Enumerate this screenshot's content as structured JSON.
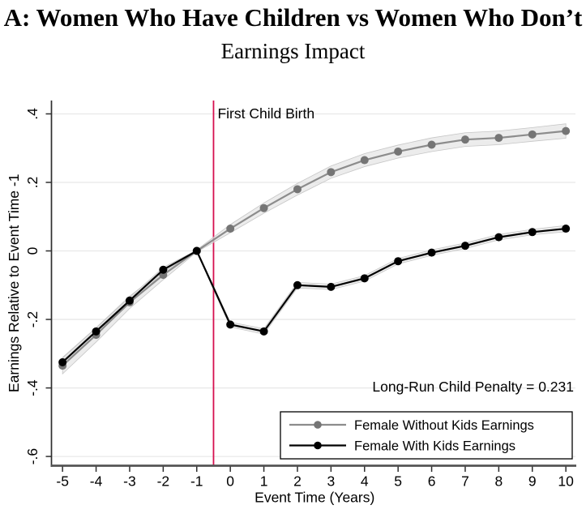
{
  "header": {
    "title": "A: Women Who Have Children vs Women Who Don’t",
    "subtitle": "Earnings Impact"
  },
  "chart_data": {
    "type": "line",
    "title": "A: Women Who Have Children vs Women Who Don’t",
    "subtitle": "Earnings Impact",
    "xlabel": "Event Time (Years)",
    "ylabel": "Earnings Relative to Event Time -1",
    "x": [
      -5,
      -4,
      -3,
      -2,
      -1,
      0,
      1,
      2,
      3,
      4,
      5,
      6,
      7,
      8,
      9,
      10
    ],
    "series": [
      {
        "name": "Female Without Kids Earnings",
        "color": "#8c8c8c",
        "marker_color": "#757575",
        "values": [
          -0.335,
          -0.245,
          -0.15,
          -0.07,
          0,
          0.065,
          0.125,
          0.18,
          0.23,
          0.265,
          0.29,
          0.31,
          0.325,
          0.33,
          0.34,
          0.35
        ],
        "ci": [
          0.024,
          0.021,
          0.018,
          0.014,
          0.003,
          0.012,
          0.015,
          0.017,
          0.018,
          0.019,
          0.019,
          0.02,
          0.02,
          0.02,
          0.02,
          0.021
        ]
      },
      {
        "name": "Female With Kids Earnings",
        "color": "#000000",
        "marker_color": "#000000",
        "values": [
          -0.325,
          -0.235,
          -0.145,
          -0.055,
          0,
          -0.215,
          -0.235,
          -0.1,
          -0.105,
          -0.08,
          -0.03,
          -0.005,
          0.015,
          0.04,
          0.055,
          0.065
        ],
        "ci": [
          0.012,
          0.01,
          0.009,
          0.007,
          0.002,
          0.007,
          0.008,
          0.008,
          0.008,
          0.008,
          0.008,
          0.008,
          0.008,
          0.008,
          0.008,
          0.009
        ]
      }
    ],
    "xticks": [
      -5,
      -4,
      -3,
      -2,
      -1,
      0,
      1,
      2,
      3,
      4,
      5,
      6,
      7,
      8,
      9,
      10
    ],
    "yticks": [
      {
        "v": 0.4,
        "label": ".4"
      },
      {
        "v": 0.2,
        "label": ".2"
      },
      {
        "v": 0,
        "label": "0"
      },
      {
        "v": -0.2,
        "label": "-.2"
      },
      {
        "v": -0.4,
        "label": "-.4"
      },
      {
        "v": -0.6,
        "label": "-.6"
      }
    ],
    "xlim": [
      -5.33,
      10.31
    ],
    "ylim": [
      -0.627,
      0.439
    ],
    "grid": "horizontal",
    "grid_color": "#e8e8e8",
    "band_color": "#e2e2e2",
    "band_edge_color": "#c6c6c6",
    "axis_color": "#545454",
    "vline": {
      "x": -0.5,
      "label": "First Child Birth",
      "color": "#d6104f"
    },
    "annotation": "Long-Run Child Penalty = 0.231",
    "legend_position": "bottom-right"
  }
}
